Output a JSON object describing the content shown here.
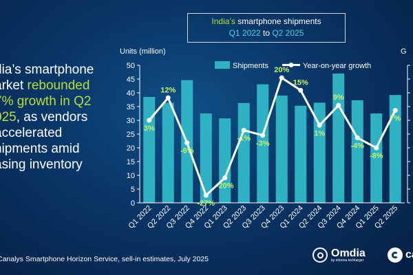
{
  "headline": {
    "line1": "dia’s smartphone",
    "line2_pre": "arket ",
    "line2_accent": "rebounded",
    "line3_accent": "7% growth in Q2",
    "line4_accent": "025",
    "line4_post": ", as vendors",
    "line5": "accelerated",
    "line6": "hipments amid",
    "line7": "asing inventory"
  },
  "title_box": {
    "line1_accent": "India’s",
    "line1_rest": " smartphone shipments",
    "line2_a": "Q1 2022",
    "line2_mid": " to ",
    "line2_b": "Q2 2025"
  },
  "units_label": "Units (million)",
  "growth_label": "G",
  "footer": {
    "source": "Canalys Smartphone Horizon Service, sell-in estimates, July 2025"
  },
  "logos": {
    "omdia": "Omdia",
    "omdia_sub": "by informa techtarget",
    "canalys": "cana"
  },
  "colors": {
    "bar": "#2fb1c4",
    "line": "#ffffff",
    "accent": "#b9de3a",
    "cyan_text": "#4dd2e3",
    "growth_label": "#c6f06a"
  },
  "chart_data": {
    "type": "bar",
    "title": "India’s smartphone shipments Q1 2022 to Q2 2025",
    "ylabel": "Units (million)",
    "ylim": [
      0,
      50
    ],
    "yticks": [
      0,
      5,
      10,
      15,
      20,
      25,
      30,
      35,
      40,
      45,
      50
    ],
    "categories": [
      "Q1 2022",
      "Q2 2022",
      "Q3 2022",
      "Q4 2022",
      "Q1 2023",
      "Q2 2023",
      "Q3 2023",
      "Q4 2023",
      "Q1 2024",
      "Q2 2024",
      "Q3 2024",
      "Q4 2024",
      "Q1 2025",
      "Q2 2025"
    ],
    "series": [
      {
        "name": "Shipments",
        "type": "bar",
        "values": [
          38.5,
          36.4,
          44.6,
          32.5,
          30.7,
          36.3,
          43.1,
          39.0,
          35.3,
          36.4,
          47.0,
          37.3,
          32.5,
          39.2
        ]
      },
      {
        "name": "Year-on-year growth",
        "type": "line",
        "ylim_pct": [
          -30,
          25
        ],
        "values": [
          3,
          12,
          -6,
          -27,
          -20,
          -1,
          -3,
          20,
          15,
          1,
          9,
          -4,
          -8,
          7
        ],
        "labels": [
          "3%",
          "12%",
          "-6%",
          "-27%",
          "-20%",
          "-1%",
          "-3%",
          "20%",
          "15%",
          "1%",
          "9%",
          "-4%",
          "-8%",
          "7%"
        ]
      }
    ],
    "legend": [
      "Shipments",
      "Year-on-year growth"
    ],
    "legend_position": "top"
  }
}
